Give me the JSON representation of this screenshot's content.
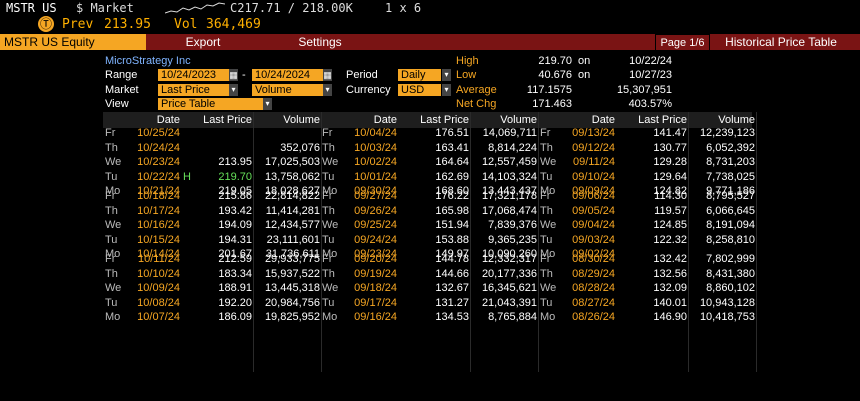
{
  "header": {
    "ticker": "MSTR US",
    "market_label": "$ Market",
    "quote": "C217.71 / 218.00K",
    "size": "1 x 6",
    "prev_label": "Prev",
    "prev_value": "213.95",
    "vol_label": "Vol",
    "vol_value": "364,469",
    "logo_glyph": "Ⓣ"
  },
  "toolbar": {
    "security": "MSTR US Equity",
    "export": "Export",
    "settings": "Settings",
    "page": "Page 1/6",
    "title": "Historical Price Table"
  },
  "params": {
    "company": "MicroStrategy Inc",
    "range_label": "Range",
    "range_start": "10/24/2023",
    "range_end": "10/24/2024",
    "period_label": "Period",
    "period_value": "Daily",
    "market_label": "Market",
    "market_value": "Last Price",
    "market_field2": "Volume",
    "currency_label": "Currency",
    "currency_value": "USD",
    "view_label": "View",
    "view_value": "Price Table"
  },
  "stats": {
    "high_label": "High",
    "high_value": "219.70",
    "high_on": "on",
    "high_date": "10/22/24",
    "low_label": "Low",
    "low_value": "40.676",
    "low_on": "on",
    "low_date": "10/27/23",
    "avg_label": "Average",
    "avg_value": "117.1575",
    "avg_vol": "15,307,951",
    "chg_label": "Net Chg",
    "chg_value": "171.463",
    "chg_pct": "403.57%"
  },
  "columns": [
    "Date",
    "Last Price",
    "Volume"
  ],
  "table": {
    "col1": [
      [
        "Fr",
        "10/25/24",
        "",
        ""
      ],
      [
        "Th",
        "10/24/24",
        "",
        "352,076"
      ],
      [
        "We",
        "10/23/24",
        "213.95",
        "17,025,503"
      ],
      [
        "Tu",
        "10/22/24",
        "219.70",
        "13,758,062"
      ],
      [
        "Mo",
        "10/21/24",
        "219.05",
        "18,028,627"
      ],
      [
        "Fr",
        "10/18/24",
        "215.86",
        "22,814,822"
      ],
      [
        "Th",
        "10/17/24",
        "193.42",
        "11,414,281"
      ],
      [
        "We",
        "10/16/24",
        "194.09",
        "12,434,577"
      ],
      [
        "Tu",
        "10/15/24",
        "194.31",
        "23,111,601"
      ],
      [
        "Mo",
        "10/14/24",
        "201.67",
        "31,736,611"
      ],
      [
        "Fr",
        "10/11/24",
        "212.59",
        "29,933,775"
      ],
      [
        "Th",
        "10/10/24",
        "183.34",
        "15,937,522"
      ],
      [
        "We",
        "10/09/24",
        "188.91",
        "13,445,318"
      ],
      [
        "Tu",
        "10/08/24",
        "192.20",
        "20,984,756"
      ],
      [
        "Mo",
        "10/07/24",
        "186.09",
        "19,825,952"
      ]
    ],
    "col2": [
      [
        "Fr",
        "10/04/24",
        "176.51",
        "14,069,711"
      ],
      [
        "Th",
        "10/03/24",
        "163.41",
        "8,814,224"
      ],
      [
        "We",
        "10/02/24",
        "164.64",
        "12,557,459"
      ],
      [
        "Tu",
        "10/01/24",
        "162.69",
        "14,103,324"
      ],
      [
        "Mo",
        "09/30/24",
        "168.60",
        "13,443,437"
      ],
      [
        "Fr",
        "09/27/24",
        "176.22",
        "17,321,178"
      ],
      [
        "Th",
        "09/26/24",
        "165.98",
        "17,068,474"
      ],
      [
        "We",
        "09/25/24",
        "151.94",
        "7,839,376"
      ],
      [
        "Tu",
        "09/24/24",
        "153.88",
        "9,365,235"
      ],
      [
        "Mo",
        "09/23/24",
        "149.97",
        "10,090,260"
      ],
      [
        "Fr",
        "09/20/24",
        "144.78",
        "12,332,317"
      ],
      [
        "Th",
        "09/19/24",
        "144.66",
        "20,177,336"
      ],
      [
        "We",
        "09/18/24",
        "132.67",
        "16,345,621"
      ],
      [
        "Tu",
        "09/17/24",
        "131.27",
        "21,043,391"
      ],
      [
        "Mo",
        "09/16/24",
        "134.53",
        "8,765,884"
      ]
    ],
    "col3": [
      [
        "Fr",
        "09/13/24",
        "141.47",
        "12,239,123"
      ],
      [
        "Th",
        "09/12/24",
        "130.77",
        "6,052,392"
      ],
      [
        "We",
        "09/11/24",
        "129.28",
        "8,731,203"
      ],
      [
        "Tu",
        "09/10/24",
        "129.64",
        "7,738,025"
      ],
      [
        "Mo",
        "09/09/24",
        "124.82",
        "9,771,186"
      ],
      [
        "Fr",
        "09/06/24",
        "114.30",
        "8,795,527"
      ],
      [
        "Th",
        "09/05/24",
        "119.57",
        "6,066,645"
      ],
      [
        "We",
        "09/04/24",
        "124.85",
        "8,191,094"
      ],
      [
        "Tu",
        "09/03/24",
        "122.32",
        "8,258,810"
      ],
      [
        "Mo",
        "09/02/24",
        "",
        ""
      ],
      [
        "Fr",
        "08/30/24",
        "132.42",
        "7,802,999"
      ],
      [
        "Th",
        "08/29/24",
        "132.56",
        "8,431,380"
      ],
      [
        "We",
        "08/28/24",
        "132.09",
        "8,860,102"
      ],
      [
        "Tu",
        "08/27/24",
        "140.01",
        "10,943,128"
      ],
      [
        "Mo",
        "08/26/24",
        "146.90",
        "10,418,753"
      ]
    ],
    "high_marker": "H"
  },
  "colors": {
    "accent": "#f5a623",
    "bar": "#7a1414",
    "label": "#7fb4ff",
    "high": "#66e05a"
  }
}
